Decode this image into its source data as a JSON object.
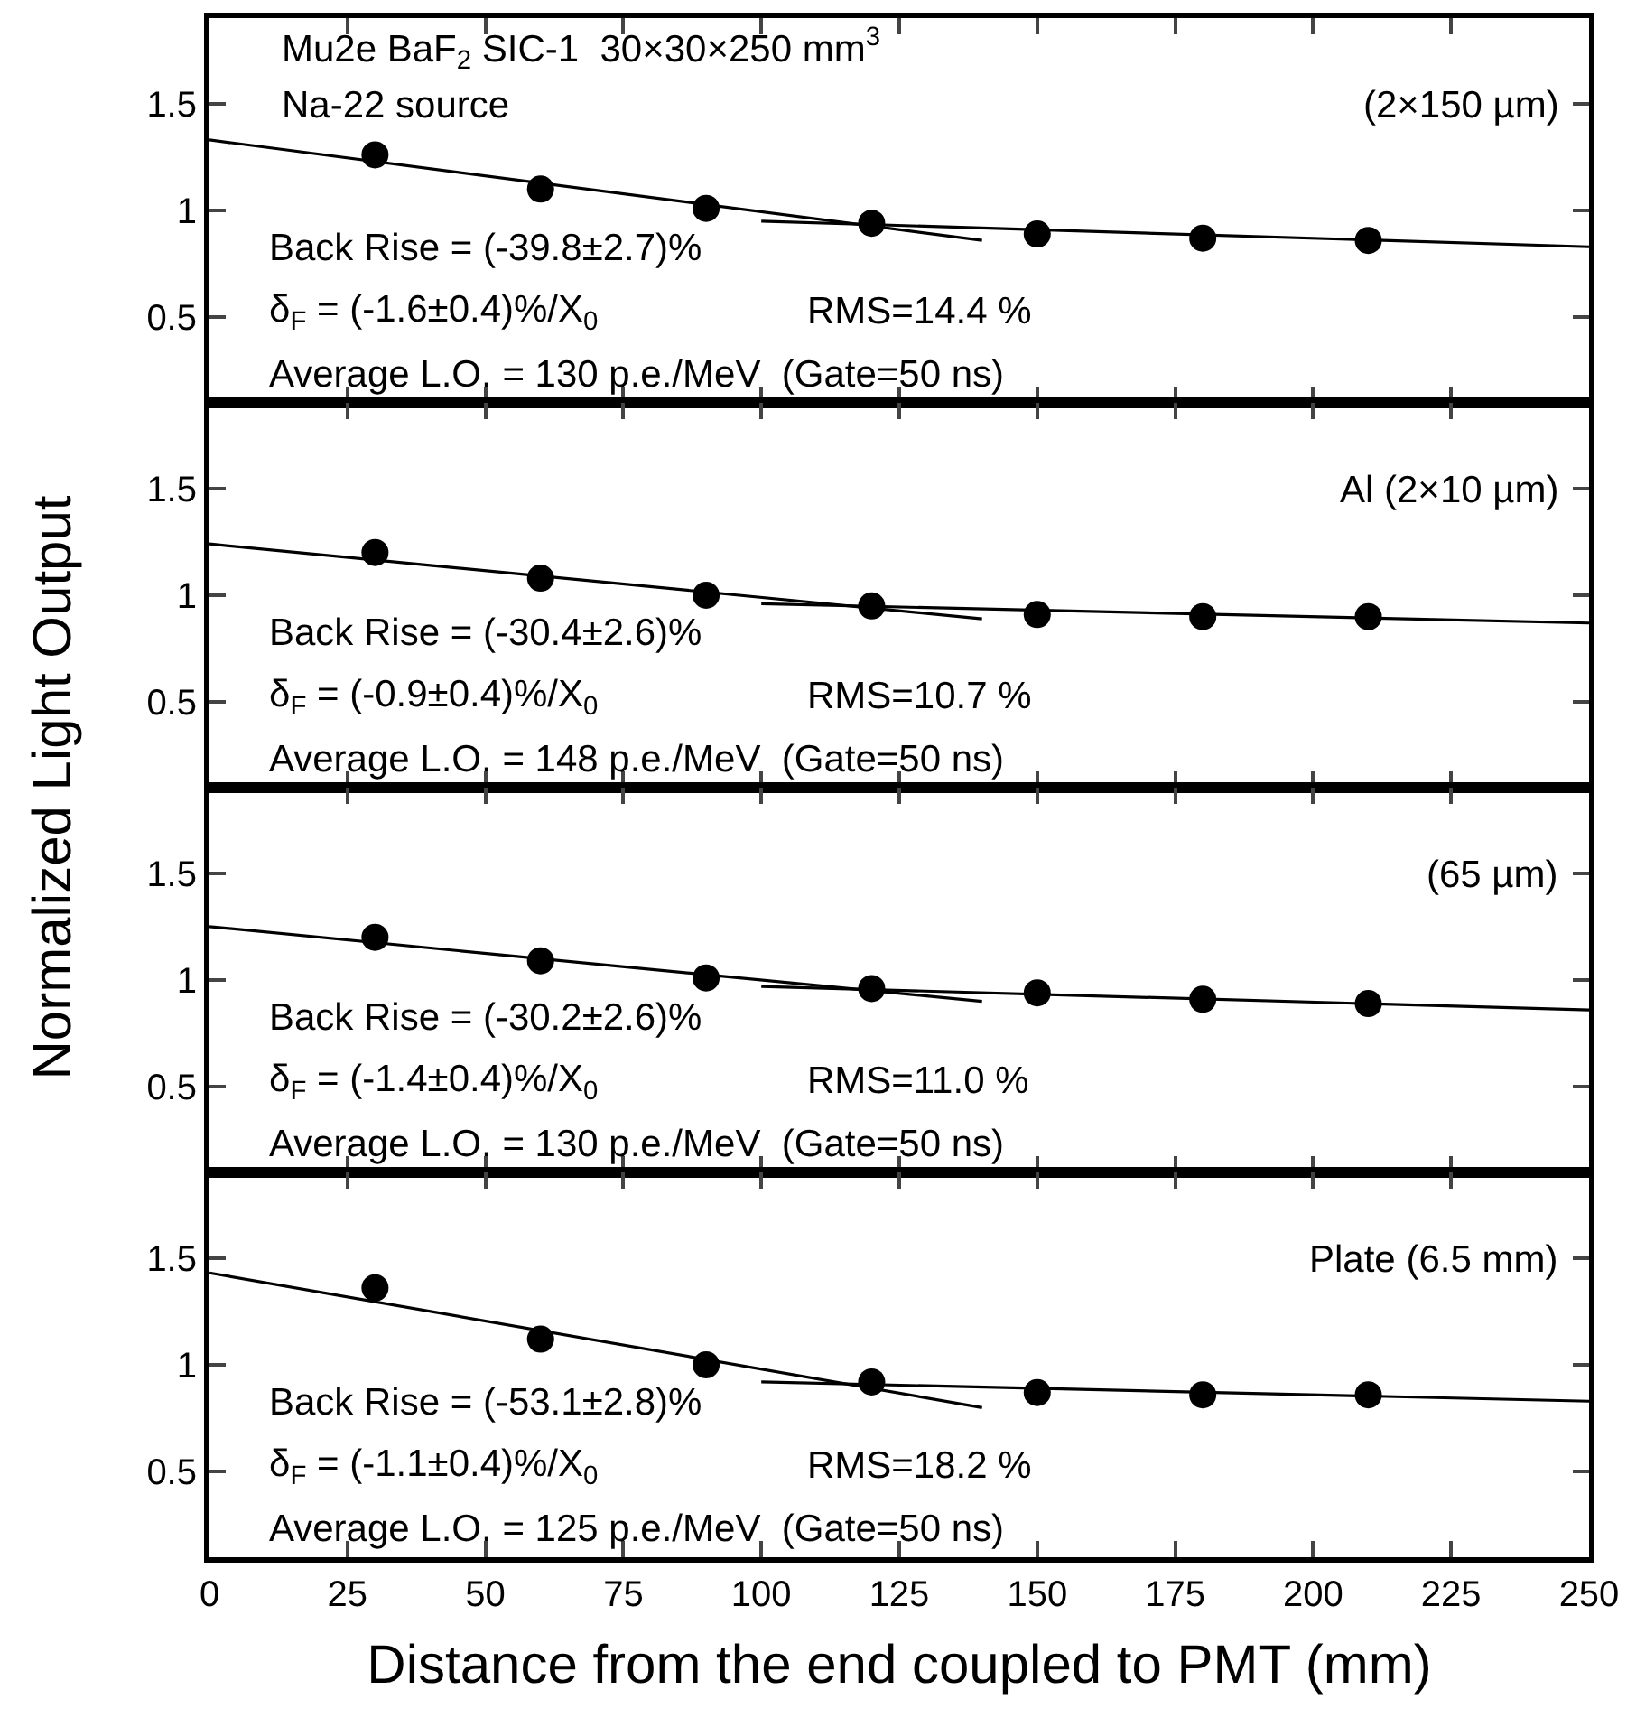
{
  "chart_data": [
    {
      "type": "scatter",
      "xlim": [
        0,
        250
      ],
      "ylim": [
        0.1,
        1.9
      ],
      "xticks": [
        0,
        25,
        50,
        75,
        100,
        125,
        150,
        175,
        200,
        225,
        250
      ],
      "yticks": [
        0.5,
        1,
        1.5
      ],
      "tick_labels": "y",
      "ylabel": "Normalized Light Output",
      "x": [
        30,
        60,
        90,
        120,
        150,
        180,
        210
      ],
      "series": [
        {
          "marker": "circle",
          "color": "#000000",
          "values": [
            1.26,
            1.1,
            1.01,
            0.94,
            0.89,
            0.87,
            0.86
          ]
        },
        {
          "type": "line",
          "marker": "none",
          "color": "#000000",
          "x": [
            0,
            140
          ],
          "values": [
            1.33,
            0.86
          ]
        },
        {
          "type": "line",
          "marker": "none",
          "color": "#000000",
          "x": [
            100,
            250
          ],
          "values": [
            0.95,
            0.83
          ]
        }
      ],
      "annotations": [
        "Mu2e BaF$_{2}$ SIC-1  30×30×250 mm$^{3}$",
        "Na-22 source",
        "(2×150 µm)",
        "Back Rise = (-39.8±2.7)%",
        "δ$_{F}$ = (-1.6±0.4)%/X$_{0}$",
        "RMS=14.4 %",
        "Average L.O. = 130 p.e./MeV  (Gate=50 ns)"
      ]
    },
    {
      "type": "scatter",
      "xlim": [
        0,
        250
      ],
      "ylim": [
        0.1,
        1.9
      ],
      "xticks": [
        0,
        25,
        50,
        75,
        100,
        125,
        150,
        175,
        200,
        225,
        250
      ],
      "yticks": [
        0.5,
        1,
        1.5
      ],
      "tick_labels": "y",
      "x": [
        30,
        60,
        90,
        120,
        150,
        180,
        210
      ],
      "series": [
        {
          "marker": "circle",
          "color": "#000000",
          "values": [
            1.2,
            1.08,
            1.0,
            0.95,
            0.91,
            0.9,
            0.9
          ]
        },
        {
          "type": "line",
          "marker": "none",
          "color": "#000000",
          "x": [
            0,
            140
          ],
          "values": [
            1.24,
            0.89
          ]
        },
        {
          "type": "line",
          "marker": "none",
          "color": "#000000",
          "x": [
            100,
            250
          ],
          "values": [
            0.96,
            0.87
          ]
        }
      ],
      "annotations": [
        "Al (2×10 µm)",
        "Back Rise = (-30.4±2.6)%",
        "δ$_{F}$ = (-0.9±0.4)%/X$_{0}$",
        "RMS=10.7 %",
        "Average L.O. = 148 p.e./MeV  (Gate=50 ns)"
      ]
    },
    {
      "type": "scatter",
      "xlim": [
        0,
        250
      ],
      "ylim": [
        0.1,
        1.9
      ],
      "xticks": [
        0,
        25,
        50,
        75,
        100,
        125,
        150,
        175,
        200,
        225,
        250
      ],
      "yticks": [
        0.5,
        1,
        1.5
      ],
      "tick_labels": "y",
      "x": [
        30,
        60,
        90,
        120,
        150,
        180,
        210
      ],
      "series": [
        {
          "marker": "circle",
          "color": "#000000",
          "values": [
            1.2,
            1.09,
            1.01,
            0.96,
            0.94,
            0.91,
            0.89
          ]
        },
        {
          "type": "line",
          "marker": "none",
          "color": "#000000",
          "x": [
            0,
            140
          ],
          "values": [
            1.25,
            0.9
          ]
        },
        {
          "type": "line",
          "marker": "none",
          "color": "#000000",
          "x": [
            100,
            250
          ],
          "values": [
            0.97,
            0.86
          ]
        }
      ],
      "annotations": [
        "(65 µm)",
        "Back Rise = (-30.2±2.6)%",
        "δ$_{F}$ = (-1.4±0.4)%/X$_{0}$",
        "RMS=11.0 %",
        "Average L.O. = 130 p.e./MeV  (Gate=50 ns)"
      ]
    },
    {
      "type": "scatter",
      "xlim": [
        0,
        250
      ],
      "ylim": [
        0.1,
        1.9
      ],
      "xticks": [
        0,
        25,
        50,
        75,
        100,
        125,
        150,
        175,
        200,
        225,
        250
      ],
      "yticks": [
        0.5,
        1,
        1.5
      ],
      "xlabel": "Distance from the end coupled to PMT (mm)",
      "x": [
        30,
        60,
        90,
        120,
        150,
        180,
        210
      ],
      "series": [
        {
          "marker": "circle",
          "color": "#000000",
          "values": [
            1.36,
            1.12,
            1.0,
            0.92,
            0.87,
            0.86,
            0.86
          ]
        },
        {
          "type": "line",
          "marker": "none",
          "color": "#000000",
          "x": [
            0,
            140
          ],
          "values": [
            1.43,
            0.8
          ]
        },
        {
          "type": "line",
          "marker": "none",
          "color": "#000000",
          "x": [
            100,
            250
          ],
          "values": [
            0.92,
            0.83
          ]
        }
      ],
      "annotations": [
        "Plate (6.5 mm)",
        "Back Rise = (-53.1±2.8)%",
        "δ$_{F}$ = (-1.1±0.4)%/X$_{0}$",
        "RMS=18.2 %",
        "Average L.O. = 125 p.e./MeV  (Gate=50 ns)"
      ]
    }
  ]
}
